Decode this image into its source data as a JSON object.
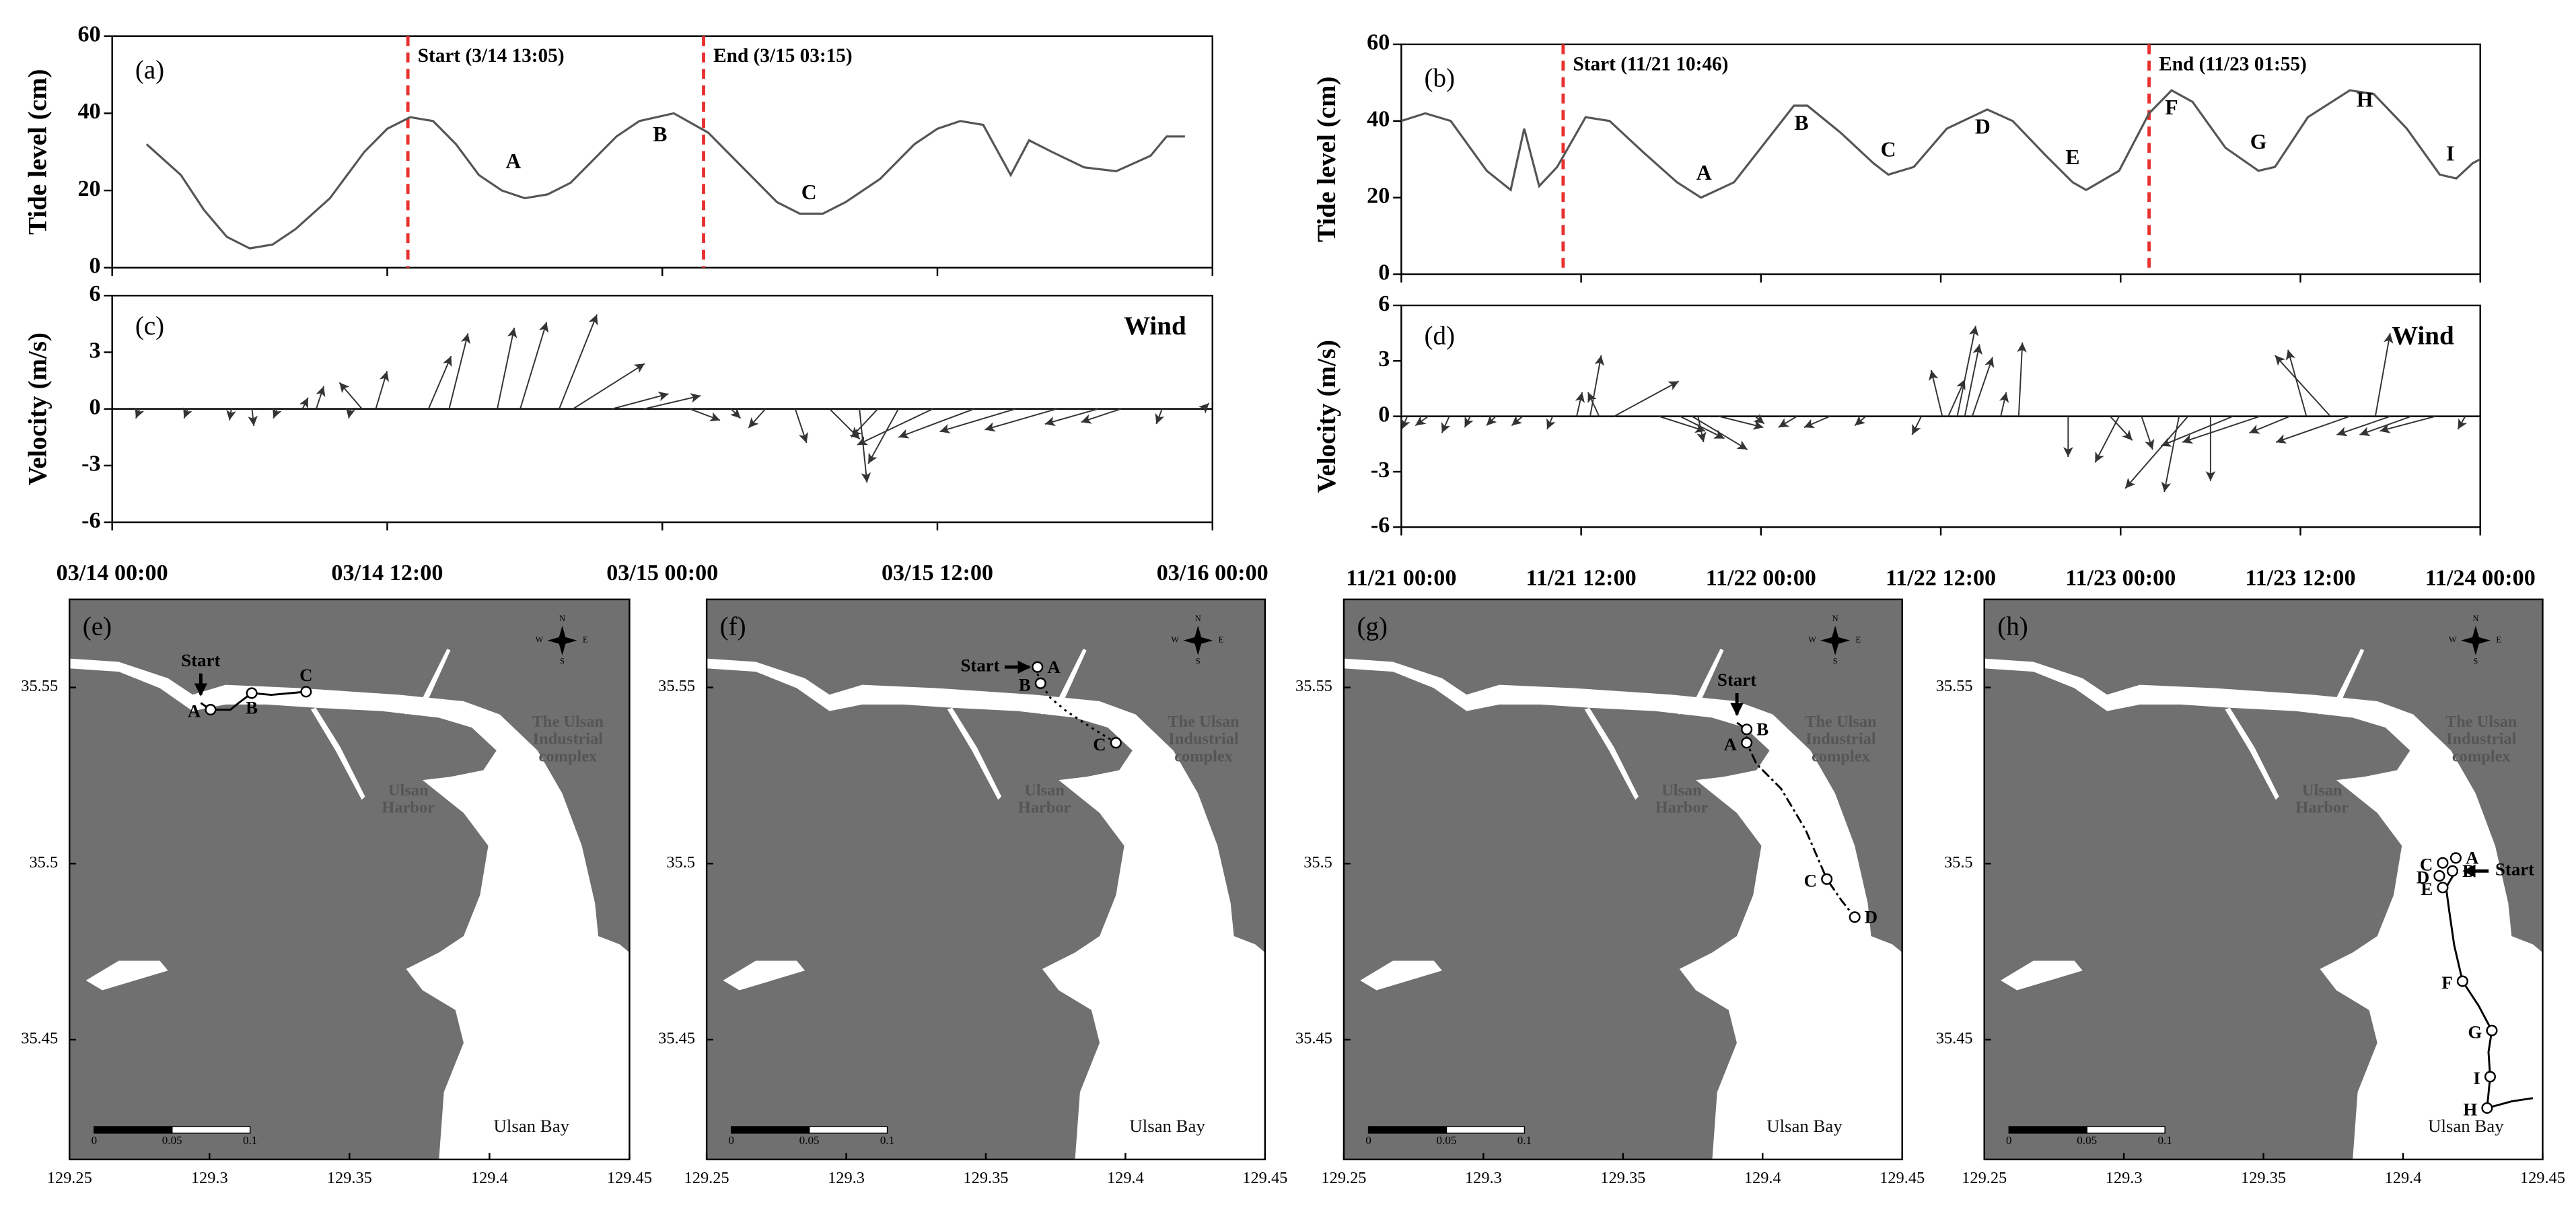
{
  "chart_data": [
    {
      "type": "line",
      "panel": "(a)",
      "xlim": [
        0,
        48
      ],
      "xticks": [
        0,
        12,
        24,
        36,
        48
      ],
      "ylim": [
        0,
        60
      ],
      "yticks": [
        0,
        20,
        40,
        60
      ],
      "ylabel": "Tide level (cm)",
      "color": "#555555",
      "x": [
        1.5,
        3,
        4,
        5,
        6,
        7,
        8,
        9.5,
        11,
        12,
        13,
        14,
        15,
        16,
        17,
        18,
        19,
        20,
        21,
        22,
        23,
        24.5,
        26,
        27,
        28,
        29,
        30,
        31,
        32,
        33.5,
        35,
        36,
        37,
        38,
        39.2,
        40,
        41,
        42.4,
        43.8,
        45.3,
        46,
        46.8
      ],
      "values": [
        32,
        24,
        15,
        8,
        5,
        6,
        10,
        18,
        30,
        36,
        39,
        38,
        32,
        24,
        20,
        18,
        19,
        22,
        28,
        34,
        38,
        40,
        35,
        29,
        23,
        17,
        14,
        14,
        17,
        23,
        32,
        36,
        38,
        37,
        24,
        33,
        30,
        26,
        25,
        29,
        34,
        34
      ],
      "events": [
        {
          "label": "Start (3/14 13:05)",
          "x": 12.9,
          "color": "#e8312f"
        },
        {
          "label": "End (3/15 03:15)",
          "x": 25.8,
          "color": "#e8312f"
        }
      ],
      "annotations": [
        {
          "text": "A",
          "x": 17.5,
          "y": 27
        },
        {
          "text": "B",
          "x": 23.9,
          "y": 34
        },
        {
          "text": "C",
          "x": 30.4,
          "y": 19
        }
      ]
    },
    {
      "type": "line",
      "panel": "(b)",
      "xlim": [
        0,
        72
      ],
      "xticks": [
        0,
        12,
        24,
        36,
        48,
        60,
        72
      ],
      "ylim": [
        0,
        60
      ],
      "yticks": [
        0,
        20,
        40,
        60
      ],
      "ylabel": "Tide level (cm)",
      "color": "#555555",
      "x": [
        0,
        1.6,
        3.3,
        5.7,
        7.3,
        8.2,
        9.2,
        10.4,
        12.3,
        13.9,
        16.1,
        18.4,
        20,
        22.2,
        24.4,
        26.2,
        27.1,
        29.3,
        31.5,
        32.5,
        34.2,
        36.4,
        39.1,
        40.8,
        43,
        44.8,
        45.7,
        47.9,
        49.9,
        51.4,
        52.8,
        55,
        57.2,
        58.3,
        60.5,
        63.3,
        64.9,
        67.1,
        69.3,
        70.4,
        71.5,
        72
      ],
      "values": [
        40,
        42,
        40,
        27,
        22,
        38,
        23,
        28,
        41,
        40,
        32,
        24,
        20,
        24,
        35,
        44,
        44,
        37,
        29,
        26,
        28,
        38,
        43,
        40,
        31,
        24,
        22,
        27,
        42,
        48,
        45,
        33,
        27,
        28,
        41,
        48,
        47,
        38,
        26,
        25,
        29,
        30
      ],
      "events": [
        {
          "label": "Start (11/21 10:46)",
          "x": 10.8,
          "color": "#e8312f"
        },
        {
          "label": "End (11/23 01:55)",
          "x": 49.9,
          "color": "#e8312f"
        }
      ],
      "annotations": [
        {
          "text": "A",
          "x": 20.2,
          "y": 26
        },
        {
          "text": "B",
          "x": 26.7,
          "y": 39
        },
        {
          "text": "C",
          "x": 32.5,
          "y": 32
        },
        {
          "text": "D",
          "x": 38.8,
          "y": 38
        },
        {
          "text": "E",
          "x": 44.8,
          "y": 30
        },
        {
          "text": "F",
          "x": 51.4,
          "y": 43
        },
        {
          "text": "G",
          "x": 57.2,
          "y": 34
        },
        {
          "text": "H",
          "x": 64.3,
          "y": 45
        },
        {
          "text": "I",
          "x": 70,
          "y": 31
        }
      ]
    },
    {
      "type": "quiver",
      "panel": "(c)",
      "title": "Wind",
      "xlim": [
        0,
        48
      ],
      "xticks": [
        {
          "value": 0,
          "label": "03/14 00:00"
        },
        {
          "value": 12,
          "label": "03/14 12:00"
        },
        {
          "value": 24,
          "label": "03/15 00:00"
        },
        {
          "value": 36,
          "label": "03/15 12:00"
        },
        {
          "value": 48,
          "label": "03/16 00:00"
        }
      ],
      "ylim": [
        -6,
        6
      ],
      "yticks": [
        -6,
        -3,
        0,
        3,
        6
      ],
      "ylabel": "Velocity (m/s)",
      "color": "#333333",
      "x": [
        1.2,
        3.3,
        5.2,
        6.1,
        7.2,
        8.3,
        8.9,
        10.4,
        10.9,
        11.5,
        13.8,
        14.7,
        16.8,
        17.8,
        19.5,
        20.1,
        21.8,
        23.2,
        25.2,
        27.0,
        28.5,
        29.8,
        31.3,
        32.6,
        33.4,
        34.3,
        35.8,
        37.6,
        39.4,
        41.2,
        43.0,
        44.0,
        45.8,
        47.6
      ],
      "u": [
        -0.2,
        -0.2,
        -0.1,
        0.1,
        -0.2,
        0.3,
        0.4,
        -0.1,
        -1.2,
        0.6,
        1.2,
        1.0,
        0.9,
        1.4,
        2.0,
        3.8,
        3.0,
        3.0,
        1.6,
        0.5,
        -0.9,
        0.6,
        1.6,
        0.4,
        -1.4,
        -1.6,
        -4.0,
        -4.0,
        -4.0,
        -3.8,
        -2.8,
        -2.1,
        -0.3,
        0.3
      ],
      "v": [
        -0.5,
        -0.5,
        -0.6,
        -0.9,
        -0.5,
        0.6,
        1.2,
        -0.5,
        1.4,
        2.0,
        2.8,
        4.0,
        4.3,
        4.6,
        5.0,
        2.4,
        0.8,
        0.7,
        -0.6,
        -0.5,
        -1.0,
        -1.8,
        -1.6,
        -3.9,
        -1.5,
        -2.9,
        -1.9,
        -1.5,
        -1.2,
        -1.1,
        -0.8,
        -0.7,
        -0.8,
        0.3
      ]
    },
    {
      "type": "quiver",
      "panel": "(d)",
      "title": "Wind",
      "xlim": [
        0,
        72
      ],
      "xticks": [
        {
          "value": 0,
          "label": "11/21 00:00"
        },
        {
          "value": 12,
          "label": "11/21 12:00"
        },
        {
          "value": 24,
          "label": "11/22 00:00"
        },
        {
          "value": 36,
          "label": "11/22 12:00"
        },
        {
          "value": 48,
          "label": "11/23 00:00"
        },
        {
          "value": 60,
          "label": "11/23 12:00"
        },
        {
          "value": 72,
          "label": "11/24 00:00"
        }
      ],
      "ylim": [
        -6,
        6
      ],
      "yticks": [
        -6,
        -3,
        0,
        3,
        6
      ],
      "ylabel": "Velocity (m/s)",
      "color": "#333333",
      "x": [
        0.4,
        1.8,
        3.2,
        4.6,
        6.3,
        8.1,
        10.1,
        11.7,
        12.6,
        13.2,
        14.2,
        17.2,
        18.6,
        19.4,
        19.8,
        21.2,
        23.6,
        26.4,
        28.6,
        31.0,
        34.7,
        36.1,
        36.5,
        37.1,
        37.6,
        38.1,
        40.0,
        41.2,
        44.5,
        47.3,
        47.9,
        49.4,
        51.9,
        52.5,
        54.0,
        55.5,
        57.3,
        59.3,
        60.4,
        62.0,
        63.3,
        65.0,
        66.0,
        67.4,
        69.0,
        71.0
      ],
      "u": [
        -0.3,
        -0.7,
        -0.4,
        -0.3,
        -0.5,
        -0.6,
        -0.3,
        0.3,
        0.6,
        -0.6,
        3.5,
        2.5,
        2.4,
        3.0,
        0.3,
        2.4,
        0.5,
        -1.0,
        -1.4,
        -0.6,
        -0.5,
        -0.6,
        0.9,
        1.0,
        0.8,
        1.1,
        0.3,
        0.2,
        0.0,
        1.2,
        -1.3,
        0.6,
        -0.8,
        -3.4,
        0.0,
        -3.9,
        -4.2,
        -2.2,
        -1.0,
        -3.0,
        -4.0,
        0.8,
        -2.9,
        -2.8,
        -3.0,
        -0.4
      ],
      "v": [
        -0.7,
        -0.5,
        -0.9,
        -0.6,
        -0.5,
        -0.5,
        -0.7,
        1.3,
        3.3,
        1.3,
        1.9,
        -0.8,
        -1.2,
        -1.8,
        -1.4,
        -0.6,
        -0.4,
        -0.6,
        -0.6,
        -0.5,
        -1.0,
        2.5,
        2.0,
        4.9,
        3.9,
        3.2,
        1.3,
        4.0,
        -2.2,
        -1.3,
        -2.5,
        -1.8,
        -4.1,
        -3.9,
        -3.5,
        -1.6,
        -1.4,
        -0.9,
        3.6,
        3.3,
        -1.4,
        4.5,
        -1.0,
        -1.0,
        -0.8,
        -0.7
      ]
    },
    {
      "type": "map",
      "panel": "(e)",
      "xlim": [
        129.25,
        129.45
      ],
      "ylim": [
        35.416,
        35.575
      ],
      "xticks": [
        129.25,
        129.3,
        129.35,
        129.4,
        129.45
      ],
      "yticks": [
        35.45,
        35.5,
        35.55
      ],
      "land_color": "#707070",
      "line_style": "solid",
      "track": {
        "x": [
          129.2969,
          129.3004,
          129.3075,
          129.3104,
          129.3151,
          129.3221,
          129.3345
        ],
        "y": [
          35.5456,
          35.5437,
          35.5437,
          35.5456,
          35.5484,
          35.5479,
          35.5488
        ]
      },
      "points": [
        {
          "label": "A",
          "x": 129.3004,
          "y": 35.5437,
          "side": "left"
        },
        {
          "label": "B",
          "x": 129.3151,
          "y": 35.5484,
          "side": "below"
        },
        {
          "label": "C",
          "x": 129.3345,
          "y": 35.5488,
          "side": "above"
        }
      ],
      "start": {
        "label": "Start",
        "x": 129.2969,
        "y": 35.5456,
        "from": "above"
      },
      "place_labels": [
        {
          "lines": [
            "The Ulsan",
            "Industrial",
            "complex"
          ],
          "x": 129.428,
          "y": 35.535,
          "style": "land"
        },
        {
          "lines": [
            "Ulsan",
            "Harbor"
          ],
          "x": 129.371,
          "y": 35.518,
          "style": "land"
        },
        {
          "lines": [
            "Ulsan Bay"
          ],
          "x": 129.415,
          "y": 35.425,
          "style": "water"
        }
      ],
      "scale_bar": [
        0,
        0.05,
        0.1
      ],
      "compass": [
        "N",
        "E",
        "S",
        "W"
      ]
    },
    {
      "type": "map",
      "panel": "(f)",
      "xlim": [
        129.25,
        129.45
      ],
      "ylim": [
        35.416,
        35.575
      ],
      "xticks": [
        129.25,
        129.3,
        129.35,
        129.4,
        129.45
      ],
      "yticks": [
        35.45,
        35.5,
        35.55
      ],
      "land_color": "#707070",
      "line_style": "dotted",
      "track": {
        "x": [
          129.3685,
          129.3685,
          129.3696,
          129.3732,
          129.379,
          129.3878,
          129.3966
        ],
        "y": [
          35.5558,
          35.554,
          35.5512,
          35.547,
          35.5432,
          35.5386,
          35.5343
        ]
      },
      "points": [
        {
          "label": "A",
          "x": 129.3685,
          "y": 35.5558,
          "side": "right"
        },
        {
          "label": "B",
          "x": 129.3696,
          "y": 35.5512,
          "side": "left"
        },
        {
          "label": "C",
          "x": 129.3966,
          "y": 35.5343,
          "side": "left"
        }
      ],
      "start": {
        "label": "Start",
        "x": 129.3685,
        "y": 35.5558,
        "from": "left"
      },
      "place_labels": [
        {
          "lines": [
            "The Ulsan",
            "Industrial",
            "complex"
          ],
          "x": 129.428,
          "y": 35.535,
          "style": "land"
        },
        {
          "lines": [
            "Ulsan",
            "Harbor"
          ],
          "x": 129.371,
          "y": 35.518,
          "style": "land"
        },
        {
          "lines": [
            "Ulsan Bay"
          ],
          "x": 129.415,
          "y": 35.425,
          "style": "water"
        }
      ],
      "scale_bar": [
        0,
        0.05,
        0.1
      ],
      "compass": [
        "N",
        "E",
        "S",
        "W"
      ]
    },
    {
      "type": "map",
      "panel": "(g)",
      "xlim": [
        129.25,
        129.45
      ],
      "ylim": [
        35.416,
        35.575
      ],
      "xticks": [
        129.25,
        129.3,
        129.35,
        129.4,
        129.45
      ],
      "yticks": [
        35.45,
        35.5,
        35.55
      ],
      "land_color": "#707070",
      "line_style": "dashdot",
      "track": {
        "x": [
          129.3908,
          129.3943,
          129.3943,
          129.3978,
          129.4066,
          129.4154,
          129.423,
          129.4283,
          129.433
        ],
        "y": [
          35.54,
          35.5381,
          35.5343,
          35.5283,
          35.5213,
          35.5096,
          35.4956,
          35.4895,
          35.4848
        ]
      },
      "points": [
        {
          "label": "B",
          "x": 129.3943,
          "y": 35.5381,
          "side": "right"
        },
        {
          "label": "A",
          "x": 129.3943,
          "y": 35.5343,
          "side": "left"
        },
        {
          "label": "C",
          "x": 129.423,
          "y": 35.4956,
          "side": "left"
        },
        {
          "label": "D",
          "x": 129.433,
          "y": 35.4848,
          "side": "right"
        }
      ],
      "start": {
        "label": "Start",
        "x": 129.3908,
        "y": 35.54,
        "from": "above"
      },
      "place_labels": [
        {
          "lines": [
            "The Ulsan",
            "Industrial",
            "complex"
          ],
          "x": 129.428,
          "y": 35.535,
          "style": "land"
        },
        {
          "lines": [
            "Ulsan",
            "Harbor"
          ],
          "x": 129.371,
          "y": 35.518,
          "style": "land"
        },
        {
          "lines": [
            "Ulsan Bay"
          ],
          "x": 129.415,
          "y": 35.425,
          "style": "water"
        }
      ],
      "scale_bar": [
        0,
        0.05,
        0.1
      ],
      "compass": [
        "N",
        "E",
        "S",
        "W"
      ]
    },
    {
      "type": "map",
      "panel": "(h)",
      "xlim": [
        129.25,
        129.45
      ],
      "ylim": [
        35.416,
        35.575
      ],
      "xticks": [
        129.25,
        129.3,
        129.35,
        129.4,
        129.45
      ],
      "yticks": [
        35.45,
        35.5,
        35.55
      ],
      "land_color": "#707070",
      "line_style": "solid",
      "track": {
        "x": [
          129.4189,
          129.4154,
          129.4166,
          129.4183,
          129.4213,
          129.4271,
          129.4318,
          129.4306,
          129.4312,
          129.4301,
          129.4389,
          129.4465
        ],
        "y": [
          35.4979,
          35.4932,
          35.4862,
          35.4769,
          35.4666,
          35.4596,
          35.4526,
          35.4465,
          35.4395,
          35.4306,
          35.4325,
          35.4334
        ]
      },
      "points": [
        {
          "label": "C",
          "x": 129.4142,
          "y": 35.5002,
          "side": "left"
        },
        {
          "label": "A",
          "x": 129.4189,
          "y": 35.5016,
          "side": "right"
        },
        {
          "label": "B",
          "x": 129.4177,
          "y": 35.4979,
          "side": "right"
        },
        {
          "label": "D",
          "x": 129.413,
          "y": 35.4965,
          "side": "left"
        },
        {
          "label": "E",
          "x": 129.4142,
          "y": 35.4932,
          "side": "left"
        },
        {
          "label": "F",
          "x": 129.4213,
          "y": 35.4666,
          "side": "left"
        },
        {
          "label": "G",
          "x": 129.4318,
          "y": 35.4526,
          "side": "left"
        },
        {
          "label": "I",
          "x": 129.4312,
          "y": 35.4395,
          "side": "left"
        },
        {
          "label": "H",
          "x": 129.4301,
          "y": 35.4306,
          "side": "left"
        }
      ],
      "start": {
        "label": "Start",
        "x": 129.4189,
        "y": 35.4979,
        "from": "right"
      },
      "place_labels": [
        {
          "lines": [
            "The Ulsan",
            "Industrial",
            "complex"
          ],
          "x": 129.428,
          "y": 35.535,
          "style": "land"
        },
        {
          "lines": [
            "Ulsan",
            "Harbor"
          ],
          "x": 129.371,
          "y": 35.518,
          "style": "land"
        },
        {
          "lines": [
            "Ulsan Bay"
          ],
          "x": 129.4225,
          "y": 35.425,
          "style": "water"
        }
      ],
      "scale_bar": [
        0,
        0.05,
        0.1
      ],
      "compass": [
        "N",
        "E",
        "S",
        "W"
      ]
    }
  ]
}
